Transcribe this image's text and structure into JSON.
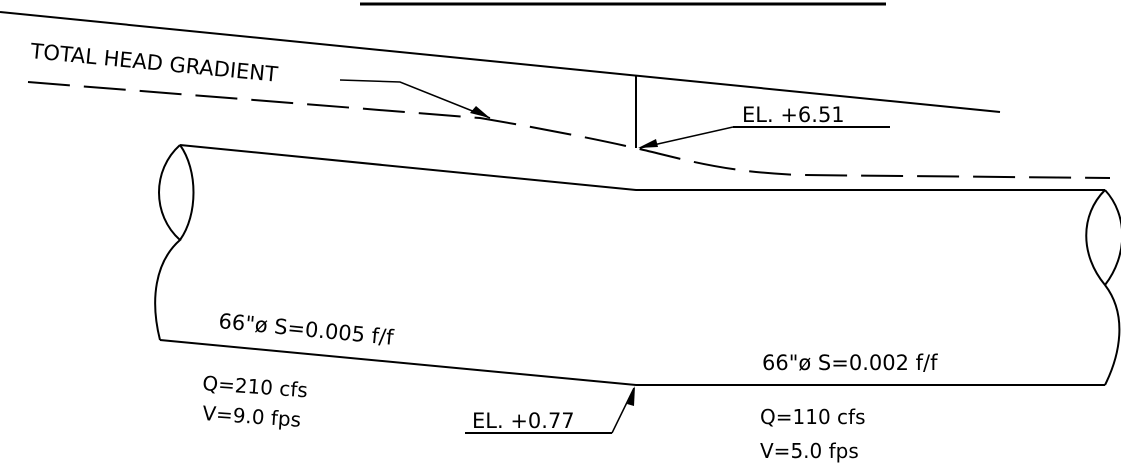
{
  "labels": {
    "total_head_gradient": "TOTAL HEAD GRADIENT",
    "el_upper": "EL. +6.51",
    "el_lower": "EL. +0.77",
    "left_pipe_spec": "66\"ø S=0.005 f/f",
    "left_flow": "Q=210 cfs",
    "left_velocity": "V=9.0 fps",
    "right_pipe_spec": "66\"ø S=0.002 f/f",
    "right_flow": "Q=110 cfs",
    "right_velocity": "V=5.0 fps"
  },
  "colors": {
    "ink": "#000000",
    "background": "#ffffff"
  }
}
